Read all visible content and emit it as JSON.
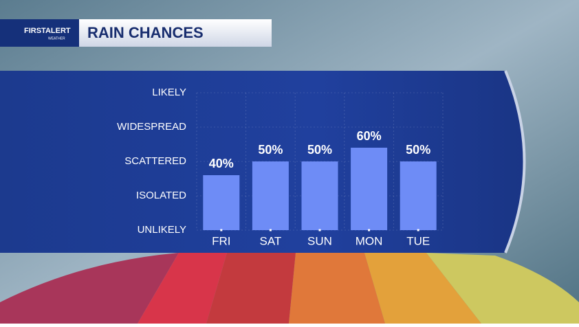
{
  "logo": {
    "text": "FIRSTALERT",
    "sub": "WEATHER"
  },
  "chart_data": {
    "type": "bar",
    "title": "RAIN CHANCES",
    "categories": [
      "FRI",
      "SAT",
      "SUN",
      "MON",
      "TUE"
    ],
    "values": [
      40,
      50,
      50,
      60,
      50
    ],
    "value_labels": [
      "40%",
      "50%",
      "50%",
      "60%",
      "50%"
    ],
    "color": "#6e8cf6",
    "ylim": [
      0,
      100
    ],
    "yticks": [
      {
        "value": 0,
        "label": "UNLIKELY"
      },
      {
        "value": 25,
        "label": "ISOLATED"
      },
      {
        "value": 50,
        "label": "SCATTERED"
      },
      {
        "value": 75,
        "label": "WIDESPREAD"
      },
      {
        "value": 100,
        "label": "LIKELY"
      }
    ],
    "grid": true
  }
}
